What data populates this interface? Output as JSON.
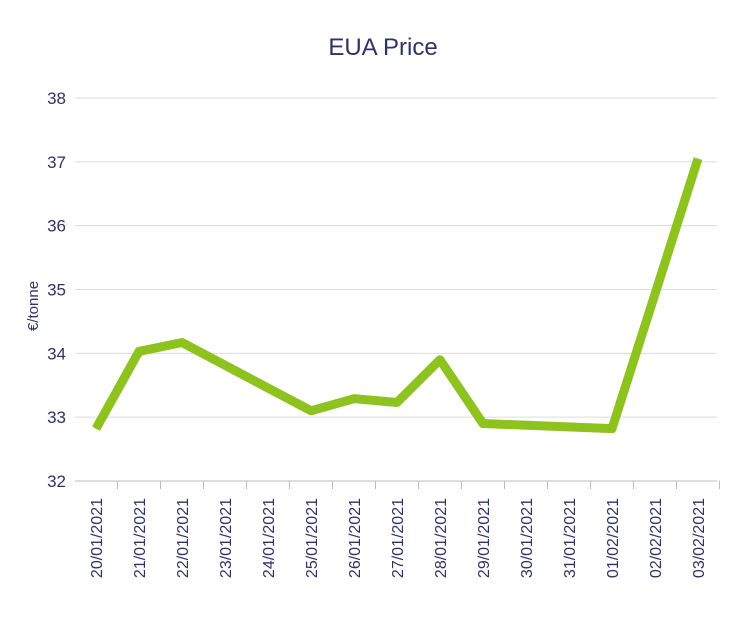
{
  "chart_data": {
    "type": "line",
    "title": "EUA Price",
    "ylabel": "€/tonne",
    "xlabel": "",
    "ylim": [
      32,
      38
    ],
    "yticks": [
      32,
      33,
      34,
      35,
      36,
      37,
      38
    ],
    "grid": true,
    "x": [
      "20/01/2021",
      "21/01/2021",
      "22/01/2021",
      "23/01/2021",
      "24/01/2021",
      "25/01/2021",
      "26/01/2021",
      "27/01/2021",
      "28/01/2021",
      "29/01/2021",
      "30/01/2021",
      "31/01/2021",
      "01/02/2021",
      "02/02/2021",
      "03/02/2021"
    ],
    "series": [
      {
        "color": "#8dc21f",
        "points": [
          {
            "x": "20/01/2021",
            "y": 32.82
          },
          {
            "x": "21/01/2021",
            "y": 34.03
          },
          {
            "x": "22/01/2021",
            "y": 34.17
          },
          {
            "x": "25/01/2021",
            "y": 33.1
          },
          {
            "x": "26/01/2021",
            "y": 33.29
          },
          {
            "x": "27/01/2021",
            "y": 33.23
          },
          {
            "x": "28/01/2021",
            "y": 33.9
          },
          {
            "x": "29/01/2021",
            "y": 32.9
          },
          {
            "x": "01/02/2021",
            "y": 32.82
          },
          {
            "x": "02/02/2021",
            "y": 34.93
          },
          {
            "x": "03/02/2021",
            "y": 37.05
          }
        ]
      }
    ]
  }
}
